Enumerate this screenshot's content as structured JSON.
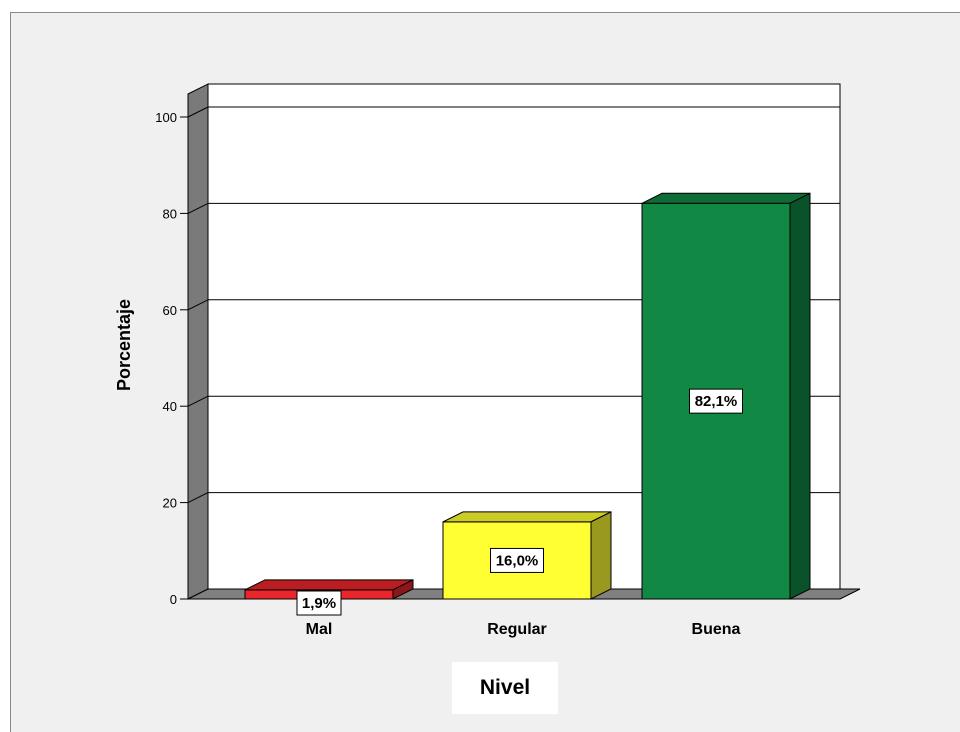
{
  "chart_data": {
    "type": "bar",
    "categories": [
      "Mal",
      "Regular",
      "Buena"
    ],
    "values": [
      1.9,
      16.0,
      82.1
    ],
    "data_labels": [
      "1,9%",
      "16,0%",
      "82,1%"
    ],
    "colors": [
      "#e8262b",
      "#ffff33",
      "#118844"
    ],
    "title": "",
    "xlabel": "Nivel",
    "ylabel": "Porcentaje",
    "ylim": [
      0,
      100
    ],
    "yticks": [
      0,
      20,
      40,
      60,
      80,
      100
    ],
    "grid": true,
    "style": "3d"
  }
}
